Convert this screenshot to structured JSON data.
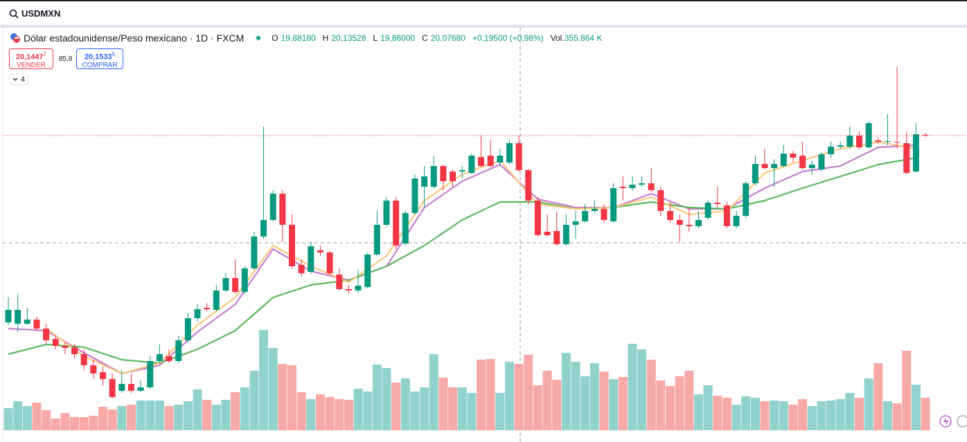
{
  "symbol": "USDMXN",
  "legend": {
    "title": "Dólar estadounidense/Peso mexicano · 1D · FXCM",
    "o_label": "O",
    "o": "19,88180",
    "h_label": "H",
    "h": "20,13528",
    "l_label": "L",
    "l": "19,86000",
    "c_label": "C",
    "c": "20,07680",
    "change": "+0,19500 (+0,98%)",
    "vol_label": "Vol.",
    "vol": "355,864 K"
  },
  "trade": {
    "sell_price": "20,1447",
    "sell_price_last": "7",
    "sell_label": "VENDER",
    "spread": "85,8",
    "buy_price": "20,1533",
    "buy_price_last": "5",
    "buy_label": "COMPRAR"
  },
  "indicators_count": 4,
  "chart_data": {
    "type": "candlestick",
    "ohlc": [
      [
        19.136,
        19.28,
        19.12,
        19.208
      ],
      [
        19.128,
        19.3,
        19.08,
        19.208
      ],
      [
        19.128,
        19.22,
        19.12,
        19.152
      ],
      [
        19.152,
        19.168,
        19.088,
        19.1
      ],
      [
        19.1,
        19.128,
        19.008,
        19.032
      ],
      [
        19.04,
        19.06,
        18.98,
        19
      ],
      [
        19,
        19.02,
        18.952,
        18.988
      ],
      [
        18.992,
        19.012,
        18.928,
        18.952
      ],
      [
        18.952,
        18.98,
        18.86,
        18.888
      ],
      [
        18.888,
        18.92,
        18.808,
        18.84
      ],
      [
        18.848,
        18.88,
        18.768,
        18.808
      ],
      [
        18.808,
        18.84,
        18.696,
        18.704
      ],
      [
        18.74,
        18.86,
        18.728,
        18.78
      ],
      [
        18.78,
        18.84,
        18.728,
        18.74
      ],
      [
        18.74,
        18.8,
        18.732,
        18.76
      ],
      [
        18.76,
        18.94,
        18.752,
        18.912
      ],
      [
        18.912,
        19.008,
        18.9,
        18.952
      ],
      [
        18.94,
        18.98,
        18.9,
        18.912
      ],
      [
        18.912,
        19.06,
        18.9,
        19.032
      ],
      [
        19.032,
        19.192,
        19.02,
        19.16
      ],
      [
        19.16,
        19.24,
        19.14,
        19.212
      ],
      [
        19.22,
        19.248,
        19.2,
        19.212
      ],
      [
        19.208,
        19.352,
        19.2,
        19.32
      ],
      [
        19.32,
        19.42,
        19.312,
        19.392
      ],
      [
        19.392,
        19.5,
        19.3,
        19.312
      ],
      [
        19.312,
        19.46,
        19.3,
        19.448
      ],
      [
        19.448,
        19.66,
        19.44,
        19.632
      ],
      [
        19.632,
        20.268,
        19.62,
        19.728
      ],
      [
        19.728,
        19.9,
        19.72,
        19.88
      ],
      [
        19.88,
        19.9,
        19.6,
        19.7
      ],
      [
        19.7,
        19.76,
        19.448,
        19.46
      ],
      [
        19.468,
        19.5,
        19.4,
        19.42
      ],
      [
        19.428,
        19.6,
        19.416,
        19.576
      ],
      [
        19.552,
        19.58,
        19.52,
        19.54
      ],
      [
        19.54,
        19.552,
        19.408,
        19.42
      ],
      [
        19.412,
        19.448,
        19.32,
        19.328
      ],
      [
        19.328,
        19.352,
        19.304,
        19.32
      ],
      [
        19.32,
        19.44,
        19.304,
        19.348
      ],
      [
        19.34,
        19.54,
        19.332,
        19.528
      ],
      [
        19.528,
        19.78,
        19.52,
        19.7
      ],
      [
        19.7,
        19.86,
        19.688,
        19.84
      ],
      [
        19.84,
        19.86,
        19.56,
        19.58
      ],
      [
        19.592,
        19.78,
        19.58,
        19.768
      ],
      [
        19.768,
        19.992,
        19.76,
        19.968
      ],
      [
        19.92,
        20.04,
        19.8,
        19.98
      ],
      [
        19.92,
        20.1,
        19.912,
        20.04
      ],
      [
        20.04,
        20.048,
        19.9,
        19.952
      ],
      [
        20.008,
        20.02,
        19.92,
        19.952
      ],
      [
        20.008,
        20.04,
        19.968,
        20.016
      ],
      [
        20,
        20.112,
        19.992,
        20.1
      ],
      [
        20.092,
        20.22,
        20.032,
        20.04
      ],
      [
        20.1,
        20.192,
        20.032,
        20.04
      ],
      [
        20.06,
        20.14,
        20.04,
        20.1
      ],
      [
        20.06,
        20.192,
        20.048,
        20.172
      ],
      [
        20.172,
        20.216,
        20.008,
        20.016
      ],
      [
        20.016,
        20.024,
        19.82,
        19.84
      ],
      [
        19.84,
        19.86,
        19.632,
        19.64
      ],
      [
        19.66,
        19.76,
        19.632,
        19.64
      ],
      [
        19.664,
        19.776,
        19.58,
        19.588
      ],
      [
        19.588,
        19.76,
        19.58,
        19.7
      ],
      [
        19.7,
        19.78,
        19.62,
        19.72
      ],
      [
        19.72,
        19.82,
        19.712,
        19.78
      ],
      [
        19.78,
        19.84,
        19.768,
        19.792
      ],
      [
        19.792,
        19.82,
        19.712,
        19.728
      ],
      [
        19.72,
        19.94,
        19.712,
        19.912
      ],
      [
        19.92,
        19.98,
        19.84,
        19.912
      ],
      [
        19.912,
        19.98,
        19.9,
        19.932
      ],
      [
        19.932,
        19.98,
        19.92,
        19.94
      ],
      [
        19.94,
        20.028,
        19.888,
        19.9
      ],
      [
        19.9,
        19.92,
        19.752,
        19.78
      ],
      [
        19.78,
        19.832,
        19.712,
        19.728
      ],
      [
        19.728,
        19.76,
        19.6,
        19.7
      ],
      [
        19.7,
        19.8,
        19.66,
        19.692
      ],
      [
        19.692,
        19.78,
        19.68,
        19.728
      ],
      [
        19.74,
        19.84,
        19.728,
        19.828
      ],
      [
        19.828,
        19.92,
        19.8,
        19.82
      ],
      [
        19.812,
        19.832,
        19.68,
        19.692
      ],
      [
        19.692,
        19.78,
        19.68,
        19.752
      ],
      [
        19.752,
        19.952,
        19.74,
        19.94
      ],
      [
        19.94,
        20.1,
        19.928,
        20.052
      ],
      [
        20.052,
        20.14,
        20.02,
        20.028
      ],
      [
        20.028,
        20.08,
        19.92,
        20.052
      ],
      [
        20.04,
        20.16,
        20.032,
        20.112
      ],
      [
        20.112,
        20.128,
        20.06,
        20.088
      ],
      [
        20.1,
        20.18,
        20.02,
        20.028
      ],
      [
        20.028,
        20.072,
        19.992,
        20.048
      ],
      [
        20.02,
        20.12,
        20.008,
        20.108
      ],
      [
        20.108,
        20.18,
        20.088,
        20.152
      ],
      [
        20.152,
        20.18,
        20.136,
        20.16
      ],
      [
        20.152,
        20.268,
        20.14,
        20.216
      ],
      [
        20.216,
        20.24,
        20.136,
        20.148
      ],
      [
        20.148,
        20.3,
        20.14,
        20.288
      ],
      [
        20.188,
        20.208,
        20.168,
        20.18
      ],
      [
        20.18,
        20.34,
        20.16,
        20.184
      ],
      [
        20.18,
        20.612,
        20.14,
        20.176
      ],
      [
        20.172,
        20.24,
        19.992,
        20
      ],
      [
        20.008,
        20.288,
        20,
        20.224
      ],
      [
        20.22,
        20.232,
        20.208,
        20.216
      ]
    ],
    "volume": [
      64,
      84,
      70,
      80,
      58,
      34,
      50,
      38,
      38,
      42,
      68,
      60,
      70,
      74,
      86,
      86,
      86,
      70,
      74,
      84,
      118,
      88,
      74,
      88,
      110,
      124,
      172,
      290,
      238,
      192,
      188,
      110,
      90,
      104,
      96,
      90,
      88,
      120,
      112,
      190,
      180,
      138,
      150,
      112,
      124,
      220,
      152,
      124,
      124,
      108,
      204,
      206,
      108,
      198,
      192,
      218,
      130,
      172,
      146,
      224,
      198,
      156,
      194,
      170,
      148,
      154,
      250,
      234,
      204,
      144,
      128,
      156,
      172,
      104,
      130,
      100,
      94,
      74,
      98,
      94,
      84,
      86,
      84,
      74,
      90,
      70,
      84,
      86,
      90,
      108,
      94,
      150,
      194,
      84,
      78,
      230,
      132,
      94
    ],
    "ylim": [
      18.512,
      20.84
    ],
    "volume_ylim": [
      0,
      400
    ],
    "up_color": "#089981",
    "down_color": "#f23645",
    "volume_up_color": "#92d2cc",
    "volume_down_color": "#f7a9a7",
    "lines": [
      {
        "color": "#c77dd1",
        "x": [
          0,
          4,
          8,
          12,
          16,
          20,
          24,
          28,
          32,
          36,
          40,
          44,
          48,
          52,
          56,
          60,
          64,
          68,
          72,
          76,
          80,
          84,
          88,
          92,
          96
        ],
        "values": [
          19.1,
          19.088,
          18.96,
          18.84,
          18.888,
          19.08,
          19.24,
          19.56,
          19.432,
          19.38,
          19.46,
          19.8,
          19.952,
          20.048,
          19.848,
          19.8,
          19.8,
          19.88,
          19.792,
          19.792,
          19.912,
          20.008,
          20.04,
          20.148,
          20.16
        ]
      },
      {
        "color": "#5cb85c",
        "x": [
          0,
          4,
          8,
          12,
          16,
          20,
          24,
          28,
          32,
          36,
          40,
          44,
          48,
          52,
          56,
          60,
          64,
          68,
          72,
          76,
          80,
          84,
          88,
          92,
          96
        ],
        "values": [
          18.952,
          19.008,
          18.992,
          18.92,
          18.9,
          18.98,
          19.088,
          19.28,
          19.352,
          19.38,
          19.46,
          19.58,
          19.728,
          19.832,
          19.832,
          19.792,
          19.8,
          19.832,
          19.8,
          19.792,
          19.84,
          19.912,
          19.98,
          20.048,
          20.088
        ]
      },
      {
        "color": "#f9c97a",
        "x": [
          4,
          8,
          12,
          16,
          20,
          24,
          28,
          32,
          36,
          40,
          44,
          48,
          52,
          56,
          60,
          64,
          68,
          72,
          76,
          80,
          84,
          88,
          92,
          96
        ],
        "values": [
          19.1,
          18.94,
          18.84,
          18.9,
          19.12,
          19.28,
          19.58,
          19.46,
          19.368,
          19.52,
          19.84,
          19.992,
          20.072,
          19.82,
          19.792,
          19.8,
          19.86,
          19.76,
          19.78,
          20,
          20.072,
          20.14,
          20.18,
          20.14
        ]
      }
    ]
  }
}
